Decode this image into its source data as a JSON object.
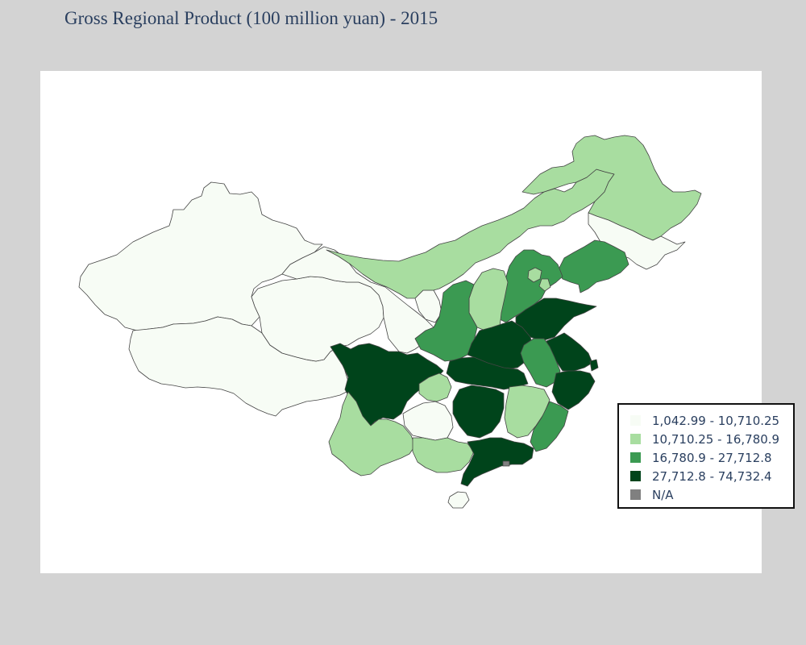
{
  "title": "Gross Regional Product (100 million yuan) - 2015",
  "colors": {
    "class1": "#f7fcf5",
    "class2": "#a8dda0",
    "class3": "#3b9a52",
    "class4": "#00441b",
    "na": "#808080"
  },
  "legend": [
    {
      "label": "1,042.99 - 10,710.25",
      "color": "#f7fcf5"
    },
    {
      "label": "10,710.25 - 16,780.9",
      "color": "#a8dda0"
    },
    {
      "label": "16,780.9 - 27,712.8",
      "color": "#3b9a52"
    },
    {
      "label": "27,712.8 - 74,732.4",
      "color": "#00441b"
    },
    {
      "label": "N/A",
      "color": "#808080"
    }
  ]
}
